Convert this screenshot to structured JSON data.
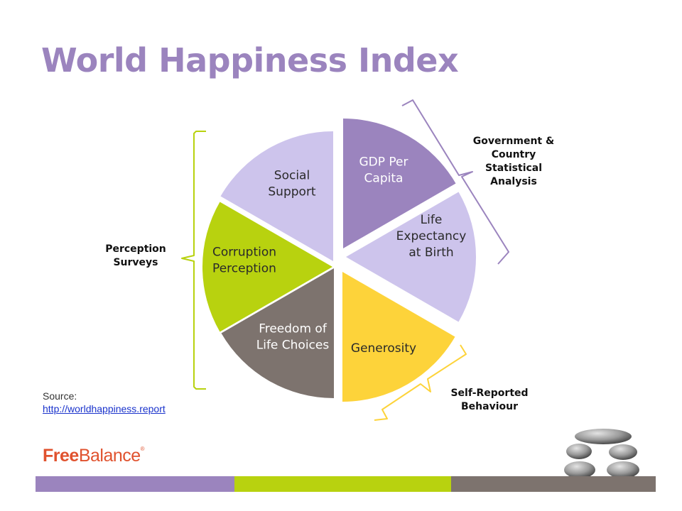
{
  "title": "World Happiness Index",
  "segments": [
    {
      "id": "gdp",
      "lines": [
        "GDP Per",
        "Capita"
      ],
      "color": "#9b84be",
      "text_color": "#ffffff"
    },
    {
      "id": "life",
      "lines": [
        "Life",
        "Expectancy",
        "at Birth"
      ],
      "color": "#cdc4ec",
      "text_color": "#2a2a2a"
    },
    {
      "id": "generosity",
      "lines": [
        "Generosity"
      ],
      "color": "#fdd33a",
      "text_color": "#2a2a2a"
    },
    {
      "id": "freedom",
      "lines": [
        "Freedom of",
        "Life Choices"
      ],
      "color": "#7d736e",
      "text_color": "#ffffff"
    },
    {
      "id": "corruption",
      "lines": [
        "Corruption",
        "Perception"
      ],
      "color": "#b8d20f",
      "text_color": "#2a2a2a"
    },
    {
      "id": "social",
      "lines": [
        "Social",
        "Support"
      ],
      "color": "#cdc4ec",
      "text_color": "#2a2a2a"
    }
  ],
  "groups": {
    "government": {
      "lines": [
        "Government &",
        "Country",
        "Statistical",
        "Analysis"
      ],
      "bracket_color": "#9b84be"
    },
    "perception": {
      "lines": [
        "Perception",
        "Surveys"
      ],
      "bracket_color": "#b8d20f"
    },
    "self_reported": {
      "lines": [
        "Self-Reported",
        "Behaviour"
      ],
      "bracket_color": "#fdd33a"
    }
  },
  "source": {
    "label": "Source:",
    "link": "http://worldhappiness.report"
  },
  "logo": {
    "part1": "Free",
    "part2": "Balance",
    "mark": "®"
  },
  "footer_colors": [
    "#9b84be",
    "#b8d20f",
    "#7d736e"
  ]
}
